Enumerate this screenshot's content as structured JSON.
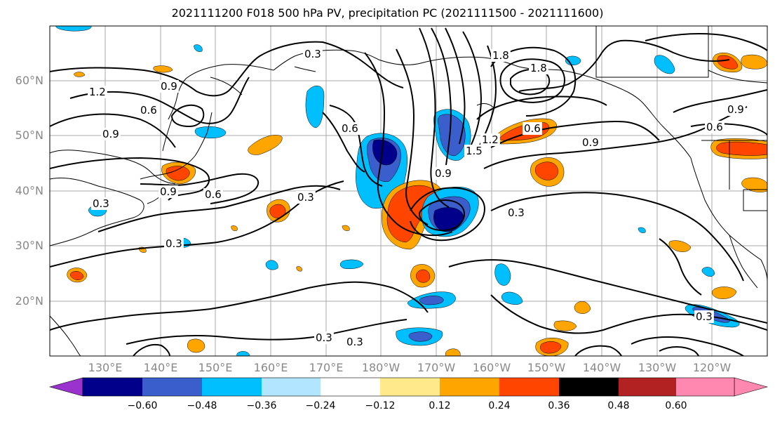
{
  "title": "2021111200 F018 500 hPa PV, precipitation PC (2021111500 - 2021111600)",
  "lat_labels": [
    "60°N",
    "50°N",
    "40°N",
    "30°N",
    "20°N"
  ],
  "lon_labels": [
    "130°E",
    "140°E",
    "150°E",
    "160°E",
    "170°E",
    "180°W",
    "170°W",
    "160°W",
    "150°W",
    "140°W",
    "130°W",
    "120°W"
  ],
  "colorbar": {
    "colors": [
      "#9a32cd",
      "#00008b",
      "#3a5fcd",
      "#00bfff",
      "#b2e5ff",
      "#ffffff",
      "#ffe98a",
      "#ffa500",
      "#ff4500",
      "#b22222",
      "#ff88b0"
    ],
    "tick_labels": [
      "−0.60",
      "−0.48",
      "−0.36",
      "−0.24",
      "−0.12",
      "0.12",
      "0.24",
      "0.36",
      "0.48",
      "0.60"
    ]
  },
  "contour_labels": [
    "0.3",
    "0.3",
    "0.3",
    "0.3",
    "0.3",
    "0.3",
    "0.3",
    "0.3",
    "0.6",
    "0.6",
    "0.6",
    "0.6",
    "0.6",
    "0.9",
    "0.9",
    "0.9",
    "0.9",
    "0.9",
    "0.9",
    "1.2",
    "1.2",
    "1.5",
    "1.8",
    "1.8"
  ]
}
